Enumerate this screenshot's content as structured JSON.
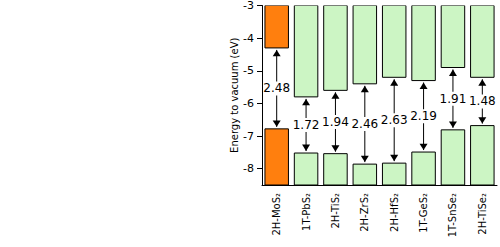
{
  "chart_data": {
    "type": "band_alignment",
    "y_label": "Energy to vacuum (eV)",
    "categories": [
      "2H-MoS₂",
      "1T-PbS₂",
      "2H-TiS₂",
      "2H-ZrS₂",
      "2H-HfS₂",
      "1T-GeS₂",
      "1T-SnSe₂",
      "2H-TiSe₂"
    ],
    "conduction_band_min": [
      -4.3,
      -5.8,
      -5.6,
      -5.4,
      -5.2,
      -5.3,
      -4.9,
      -5.2
    ],
    "valence_band_max": [
      -6.78,
      -7.52,
      -7.54,
      -7.86,
      -7.83,
      -7.49,
      -6.81,
      -6.68
    ],
    "gaps": [
      2.48,
      1.72,
      1.94,
      2.46,
      2.63,
      2.19,
      1.91,
      1.48
    ],
    "colors": [
      "#ff7f0e",
      "#ccf5c4",
      "#ccf5c4",
      "#ccf5c4",
      "#ccf5c4",
      "#ccf5c4",
      "#ccf5c4",
      "#ccf5c4"
    ],
    "ylim": [
      -8.5,
      -3
    ],
    "yticks": [
      -8,
      -7,
      -6,
      -5,
      -4,
      -3
    ],
    "grid": false
  }
}
